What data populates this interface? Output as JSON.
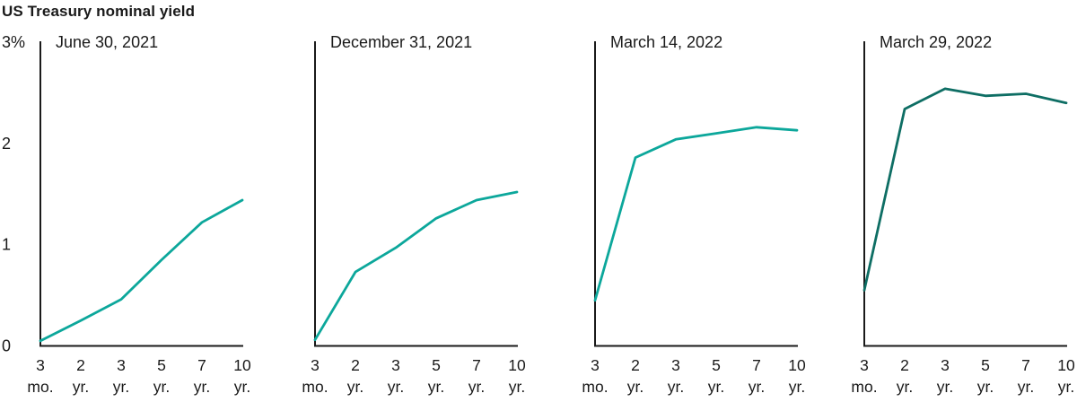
{
  "title": "US Treasury nominal yield",
  "colors": {
    "axis": "#1a1a1a",
    "text": "#1a1a1a",
    "teal_light": "#0ca79b",
    "teal_dark": "#0e6e64"
  },
  "chart_data": {
    "type": "line",
    "title": "US Treasury nominal yield",
    "unit": "percent",
    "categories": [
      "3 mo.",
      "2 yr.",
      "3 yr.",
      "5 yr.",
      "7 yr.",
      "10 yr."
    ],
    "x_tick_top": [
      "3",
      "2",
      "3",
      "5",
      "7",
      "10"
    ],
    "x_tick_bottom": [
      "mo.",
      "yr.",
      "yr.",
      "yr.",
      "yr.",
      "yr."
    ],
    "ylim": [
      0,
      3
    ],
    "ytick_labels": [
      "0",
      "1",
      "2",
      "3%"
    ],
    "ytick_values": [
      0,
      1,
      2,
      3
    ],
    "grid": false,
    "legend": "none",
    "panels": [
      {
        "label": "June 30, 2021",
        "values": [
          0.05,
          0.25,
          0.46,
          0.85,
          1.22,
          1.44
        ],
        "color": "#0ca79b",
        "show_y_labels": true
      },
      {
        "label": "December 31, 2021",
        "values": [
          0.06,
          0.73,
          0.97,
          1.26,
          1.44,
          1.52
        ],
        "color": "#0ca79b",
        "show_y_labels": false
      },
      {
        "label": "March 14, 2022",
        "values": [
          0.45,
          1.86,
          2.04,
          2.1,
          2.16,
          2.13
        ],
        "color": "#0ca79b",
        "show_y_labels": false
      },
      {
        "label": "March 29, 2022",
        "values": [
          0.55,
          2.34,
          2.54,
          2.47,
          2.49,
          2.4
        ],
        "color": "#0e6e64",
        "show_y_labels": false
      }
    ]
  }
}
